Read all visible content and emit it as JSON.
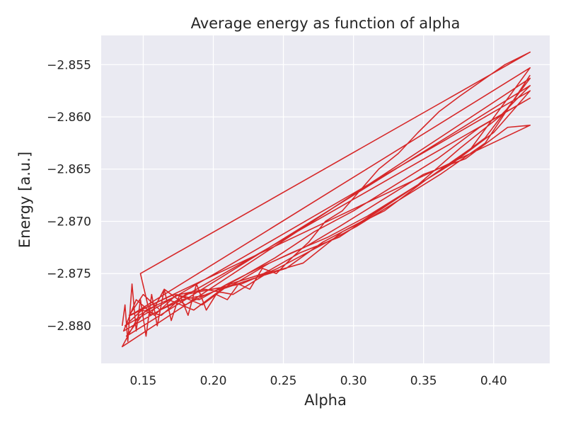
{
  "chart_data": {
    "type": "line",
    "title": "Average energy as function of alpha",
    "xlabel": "Alpha",
    "ylabel": "Energy [a.u.]",
    "xlim": [
      0.12,
      0.44
    ],
    "ylim": [
      -2.8836,
      -2.8522
    ],
    "xticks": [
      0.15,
      0.2,
      0.25,
      0.3,
      0.35,
      0.4
    ],
    "xtick_labels": [
      "0.15",
      "0.20",
      "0.25",
      "0.30",
      "0.35",
      "0.40"
    ],
    "yticks": [
      -2.88,
      -2.875,
      -2.87,
      -2.865,
      -2.86,
      -2.855
    ],
    "ytick_labels": [
      "−2.880",
      "−2.875",
      "−2.870",
      "−2.865",
      "−2.860",
      "−2.855"
    ],
    "grid": true,
    "background": "#eaeaf2",
    "line_color": "#d62728",
    "series": [
      {
        "x": [
          0.135,
          0.137,
          0.139,
          0.142,
          0.145,
          0.148,
          0.152,
          0.156,
          0.16,
          0.165,
          0.17,
          0.176,
          0.182,
          0.188,
          0.195,
          0.202,
          0.21,
          0.218,
          0.226,
          0.235,
          0.245,
          0.256,
          0.268,
          0.28,
          0.292,
          0.305,
          0.318,
          0.332,
          0.346,
          0.361,
          0.376,
          0.392,
          0.408,
          0.426,
          0.148,
          0.155,
          0.165,
          0.18,
          0.195,
          0.215,
          0.24,
          0.265,
          0.29,
          0.32,
          0.35,
          0.38,
          0.41,
          0.426,
          0.14,
          0.15,
          0.162,
          0.178,
          0.196,
          0.218,
          0.244,
          0.272,
          0.3,
          0.33,
          0.36,
          0.39,
          0.426,
          0.136,
          0.145,
          0.158,
          0.174,
          0.192,
          0.212,
          0.236,
          0.262,
          0.29,
          0.318,
          0.346,
          0.376,
          0.404,
          0.426,
          0.138,
          0.152,
          0.168,
          0.186,
          0.206,
          0.228,
          0.252,
          0.278,
          0.306,
          0.334,
          0.364,
          0.394,
          0.426,
          0.135,
          0.147,
          0.16,
          0.176,
          0.194,
          0.214,
          0.238,
          0.264,
          0.292,
          0.322,
          0.352,
          0.384,
          0.426,
          0.141,
          0.156,
          0.172,
          0.19,
          0.21,
          0.232,
          0.256,
          0.282,
          0.31,
          0.34,
          0.37,
          0.4,
          0.426,
          0.137,
          0.149,
          0.163,
          0.18,
          0.199,
          0.22,
          0.246,
          0.274,
          0.302,
          0.332,
          0.362,
          0.394,
          0.426
        ],
        "y": [
          -2.88,
          -2.878,
          -2.8815,
          -2.876,
          -2.8805,
          -2.8775,
          -2.881,
          -2.877,
          -2.88,
          -2.8765,
          -2.8795,
          -2.877,
          -2.879,
          -2.876,
          -2.8785,
          -2.877,
          -2.8775,
          -2.876,
          -2.8765,
          -2.8745,
          -2.875,
          -2.8735,
          -2.872,
          -2.87,
          -2.869,
          -2.867,
          -2.865,
          -2.8635,
          -2.8615,
          -2.8595,
          -2.858,
          -2.8565,
          -2.855,
          -2.8538,
          -2.875,
          -2.879,
          -2.8765,
          -2.878,
          -2.877,
          -2.876,
          -2.874,
          -2.8725,
          -2.8705,
          -2.868,
          -2.8655,
          -2.864,
          -2.861,
          -2.8608,
          -2.879,
          -2.877,
          -2.8785,
          -2.8775,
          -2.877,
          -2.8755,
          -2.8735,
          -2.871,
          -2.869,
          -2.8665,
          -2.864,
          -2.861,
          -2.8582,
          -2.8805,
          -2.8775,
          -2.879,
          -2.877,
          -2.878,
          -2.876,
          -2.875,
          -2.873,
          -2.8715,
          -2.869,
          -2.8665,
          -2.863,
          -2.86,
          -2.857,
          -2.881,
          -2.8785,
          -2.8775,
          -2.8785,
          -2.8765,
          -2.8755,
          -2.8745,
          -2.872,
          -2.87,
          -2.8675,
          -2.865,
          -2.862,
          -2.8563,
          -2.882,
          -2.879,
          -2.878,
          -2.877,
          -2.8765,
          -2.877,
          -2.875,
          -2.874,
          -2.871,
          -2.869,
          -2.866,
          -2.863,
          -2.8553,
          -2.879,
          -2.878,
          -2.877,
          -2.8775,
          -2.876,
          -2.8745,
          -2.873,
          -2.8715,
          -2.8695,
          -2.867,
          -2.8645,
          -2.8615,
          -2.8575,
          -2.88,
          -2.8785,
          -2.879,
          -2.877,
          -2.8765,
          -2.876,
          -2.8745,
          -2.8725,
          -2.8705,
          -2.868,
          -2.8655,
          -2.8625,
          -2.856
        ]
      }
    ]
  }
}
